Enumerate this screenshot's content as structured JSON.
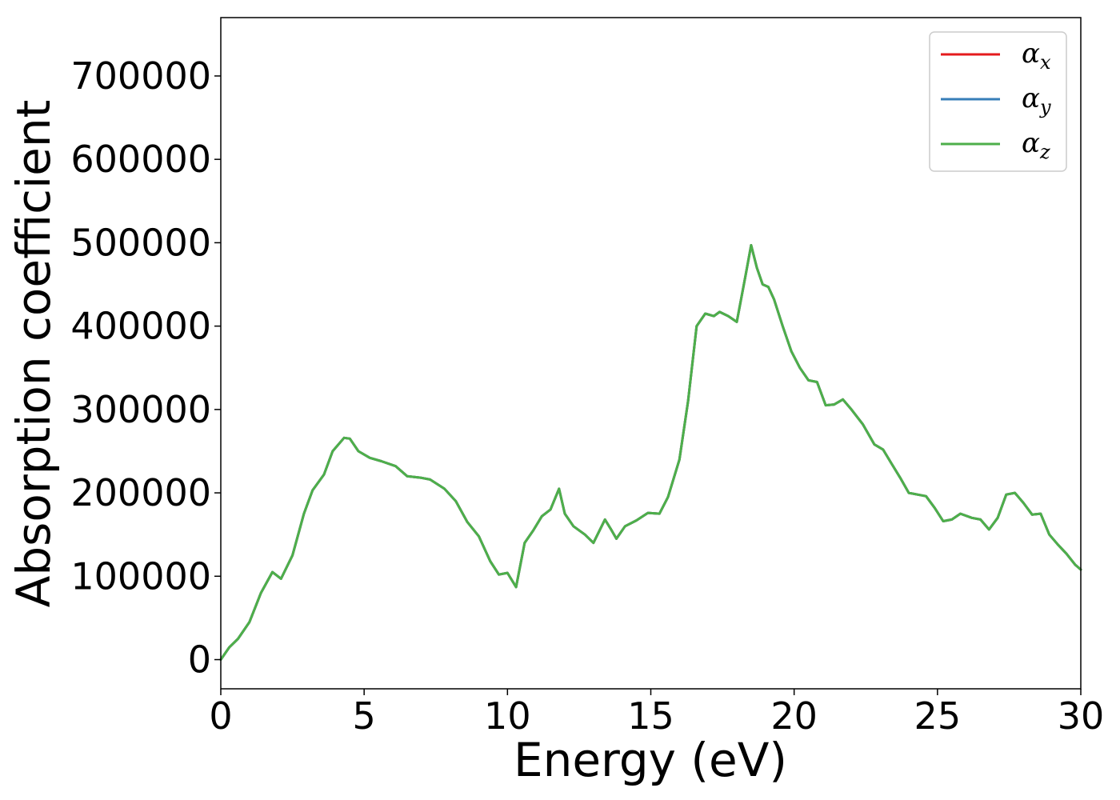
{
  "chart_data": {
    "type": "line",
    "xlabel": "Energy (eV)",
    "ylabel": "Absorption coefficient",
    "xlim": [
      0,
      30
    ],
    "ylim": [
      -35000,
      770000
    ],
    "x_ticks": [
      0,
      5,
      10,
      15,
      20,
      25,
      30
    ],
    "y_ticks": [
      0,
      100000,
      200000,
      300000,
      400000,
      500000,
      600000,
      700000
    ],
    "grid": false,
    "legend_position": "top-right",
    "x": [
      0,
      0.3,
      0.6,
      1.0,
      1.4,
      1.8,
      2.1,
      2.5,
      2.9,
      3.2,
      3.6,
      3.9,
      4.3,
      4.5,
      4.8,
      5.2,
      5.6,
      6.1,
      6.5,
      7.0,
      7.3,
      7.8,
      8.2,
      8.6,
      9.0,
      9.4,
      9.7,
      10.0,
      10.3,
      10.6,
      10.9,
      11.2,
      11.5,
      11.8,
      12.0,
      12.3,
      12.7,
      13.0,
      13.4,
      13.6,
      13.8,
      14.1,
      14.5,
      14.9,
      15.3,
      15.6,
      16.0,
      16.3,
      16.6,
      16.9,
      17.2,
      17.4,
      17.7,
      18.0,
      18.3,
      18.5,
      18.7,
      18.9,
      19.1,
      19.3,
      19.6,
      19.9,
      20.2,
      20.5,
      20.8,
      21.1,
      21.4,
      21.7,
      22.0,
      22.4,
      22.8,
      23.1,
      23.4,
      23.7,
      24.0,
      24.3,
      24.6,
      24.9,
      25.2,
      25.5,
      25.8,
      26.2,
      26.5,
      26.8,
      27.1,
      27.4,
      27.7,
      28.0,
      28.3,
      28.6,
      28.9,
      29.2,
      29.5,
      29.8,
      30.0
    ],
    "series": [
      {
        "name": "α_x",
        "label_main": "α",
        "label_sub": "x",
        "color": "#e41a1c",
        "values": [
          0,
          15000,
          25000,
          45000,
          80000,
          105000,
          97000,
          125000,
          175000,
          203000,
          222000,
          250000,
          266000,
          265000,
          250000,
          242000,
          238000,
          232000,
          220000,
          218000,
          216000,
          205000,
          190000,
          165000,
          148000,
          118000,
          102000,
          104000,
          87000,
          140000,
          155000,
          172000,
          180000,
          205000,
          175000,
          160000,
          150000,
          140000,
          168000,
          157000,
          145000,
          160000,
          167000,
          176000,
          175000,
          195000,
          240000,
          310000,
          400000,
          415000,
          412000,
          417000,
          412000,
          405000,
          460000,
          497000,
          470000,
          450000,
          447000,
          432000,
          400000,
          370000,
          350000,
          335000,
          333000,
          305000,
          306000,
          312000,
          300000,
          282000,
          258000,
          252000,
          235000,
          218000,
          200000,
          198000,
          196000,
          182000,
          166000,
          168000,
          175000,
          170000,
          168000,
          156000,
          170000,
          198000,
          200000,
          188000,
          174000,
          175000,
          150000,
          138000,
          127000,
          114000,
          108000
        ]
      },
      {
        "name": "α_y",
        "label_main": "α",
        "label_sub": "y",
        "color": "#377eb8",
        "values": [
          0,
          15000,
          25000,
          45000,
          80000,
          105000,
          97000,
          125000,
          175000,
          203000,
          222000,
          250000,
          266000,
          265000,
          250000,
          242000,
          238000,
          232000,
          220000,
          218000,
          216000,
          205000,
          190000,
          165000,
          148000,
          118000,
          102000,
          104000,
          87000,
          140000,
          155000,
          172000,
          180000,
          205000,
          175000,
          160000,
          150000,
          140000,
          168000,
          157000,
          145000,
          160000,
          167000,
          176000,
          175000,
          195000,
          240000,
          310000,
          400000,
          415000,
          412000,
          417000,
          412000,
          405000,
          460000,
          497000,
          470000,
          450000,
          447000,
          432000,
          400000,
          370000,
          350000,
          335000,
          333000,
          305000,
          306000,
          312000,
          300000,
          282000,
          258000,
          252000,
          235000,
          218000,
          200000,
          198000,
          196000,
          182000,
          166000,
          168000,
          175000,
          170000,
          168000,
          156000,
          170000,
          198000,
          200000,
          188000,
          174000,
          175000,
          150000,
          138000,
          127000,
          114000,
          108000
        ]
      },
      {
        "name": "α_z",
        "label_main": "α",
        "label_sub": "z",
        "color": "#4daf4a",
        "values": [
          0,
          15000,
          25000,
          45000,
          80000,
          105000,
          97000,
          125000,
          175000,
          203000,
          222000,
          250000,
          266000,
          265000,
          250000,
          242000,
          238000,
          232000,
          220000,
          218000,
          216000,
          205000,
          190000,
          165000,
          148000,
          118000,
          102000,
          104000,
          87000,
          140000,
          155000,
          172000,
          180000,
          205000,
          175000,
          160000,
          150000,
          140000,
          168000,
          157000,
          145000,
          160000,
          167000,
          176000,
          175000,
          195000,
          240000,
          310000,
          400000,
          415000,
          412000,
          417000,
          412000,
          405000,
          460000,
          497000,
          470000,
          450000,
          447000,
          432000,
          400000,
          370000,
          350000,
          335000,
          333000,
          305000,
          306000,
          312000,
          300000,
          282000,
          258000,
          252000,
          235000,
          218000,
          200000,
          198000,
          196000,
          182000,
          166000,
          168000,
          175000,
          170000,
          168000,
          156000,
          170000,
          198000,
          200000,
          188000,
          174000,
          175000,
          150000,
          138000,
          127000,
          114000,
          108000
        ]
      }
    ]
  }
}
